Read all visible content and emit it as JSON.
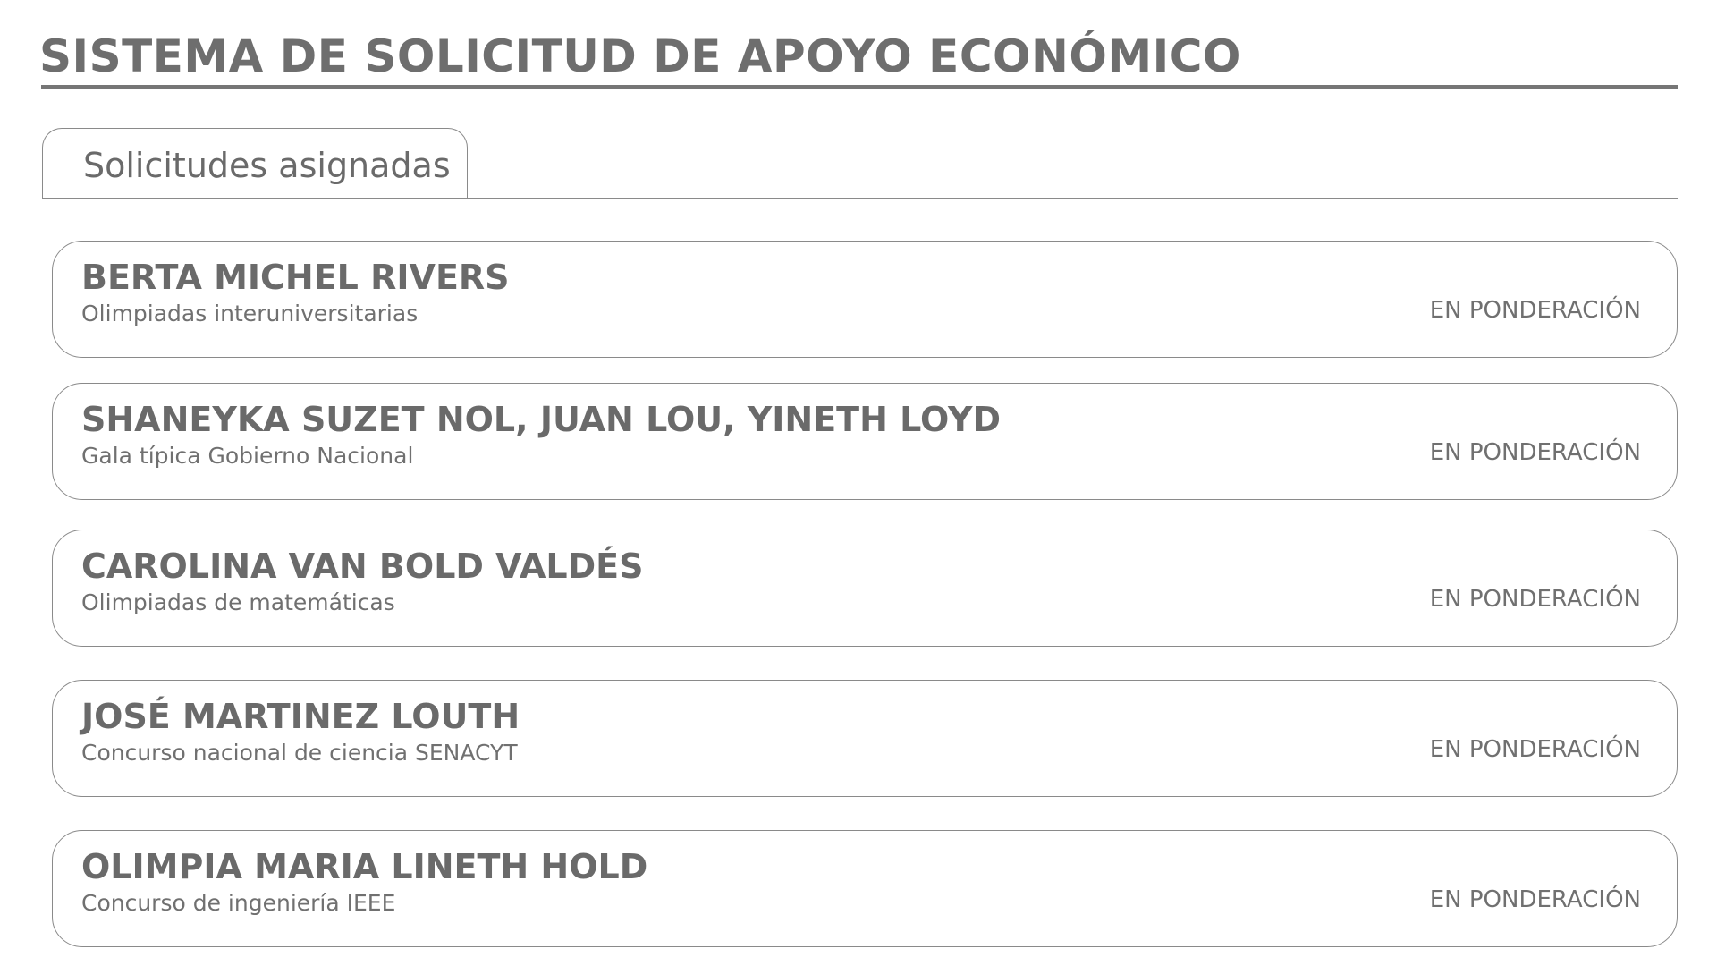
{
  "header": {
    "title": "SISTEMA DE SOLICITUD DE APOYO ECONÓMICO"
  },
  "tabs": [
    {
      "label": "Solicitudes asignadas",
      "active": true
    }
  ],
  "requests": [
    {
      "applicant": "BERTA MICHEL RIVERS",
      "event": "Olimpiadas interuniversitarias",
      "status": "EN PONDERACIÓN"
    },
    {
      "applicant": "SHANEYKA SUZET NOL, JUAN LOU, YINETH LOYD",
      "event": "Gala típica Gobierno Nacional",
      "status": "EN PONDERACIÓN"
    },
    {
      "applicant": "CAROLINA VAN BOLD VALDÉS",
      "event": "Olimpiadas de matemáticas",
      "status": "EN PONDERACIÓN"
    },
    {
      "applicant": "JOSÉ MARTINEZ LOUTH",
      "event": "Concurso nacional de ciencia SENACYT",
      "status": "EN PONDERACIÓN"
    },
    {
      "applicant": "OLIMPIA MARIA LINETH HOLD",
      "event": "Concurso de ingeniería IEEE",
      "status": "EN PONDERACIÓN"
    }
  ],
  "colors": {
    "text": "#6e6e6e",
    "border": "#8a8a8a",
    "background": "#ffffff"
  }
}
